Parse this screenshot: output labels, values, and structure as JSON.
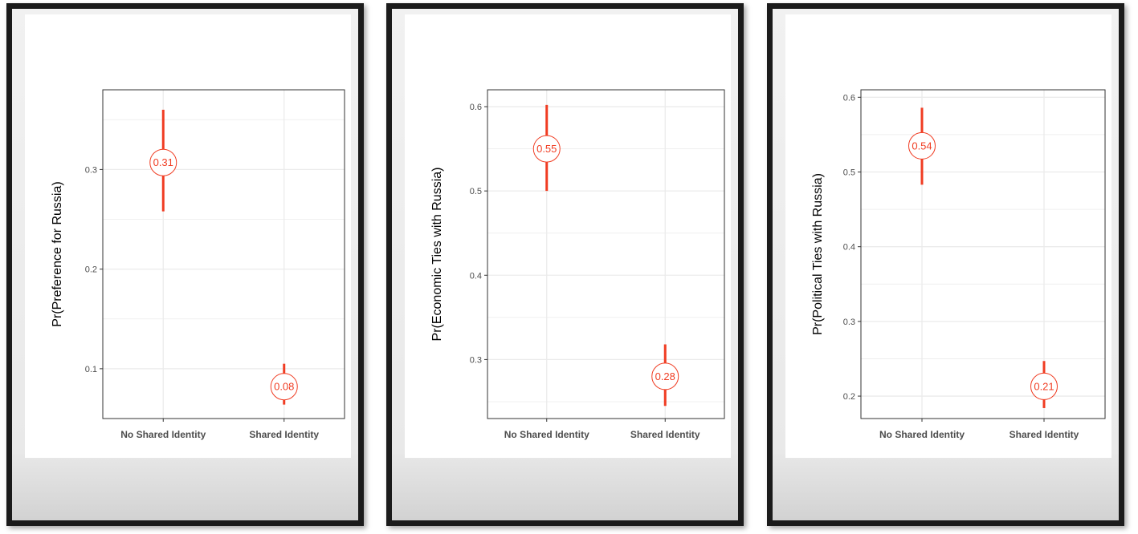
{
  "colors": {
    "accent": "#f03c22",
    "grid": "#ebebeb",
    "panel_border": "#333333",
    "frame": "#1b1b1b"
  },
  "chart_data": [
    {
      "type": "scatter",
      "title": "",
      "xlabel": "",
      "ylabel": "Pr(Preference for Russia)",
      "categories": [
        "No Shared Identity",
        "Shared Identity"
      ],
      "values": [
        0.307,
        0.082
      ],
      "point_labels": [
        "0.31",
        "0.08"
      ],
      "ci_low": [
        0.258,
        0.064
      ],
      "ci_high": [
        0.36,
        0.105
      ],
      "ylim": [
        0.05,
        0.38
      ],
      "yticks": [
        0.1,
        0.2,
        0.3
      ],
      "ytick_labels": [
        "0.1",
        "0.2",
        "0.3"
      ],
      "grid": true
    },
    {
      "type": "scatter",
      "title": "",
      "xlabel": "",
      "ylabel": "Pr(Economic Ties with Russia)",
      "categories": [
        "No Shared Identity",
        "Shared Identity"
      ],
      "values": [
        0.55,
        0.28
      ],
      "point_labels": [
        "0.55",
        "0.28"
      ],
      "ci_low": [
        0.5,
        0.245
      ],
      "ci_high": [
        0.602,
        0.318
      ],
      "ylim": [
        0.23,
        0.62
      ],
      "yticks": [
        0.3,
        0.4,
        0.5,
        0.6
      ],
      "ytick_labels": [
        "0.3",
        "0.4",
        "0.5",
        "0.6"
      ],
      "grid": true
    },
    {
      "type": "scatter",
      "title": "",
      "xlabel": "",
      "ylabel": "Pr(Political Ties with Russia)",
      "categories": [
        "No Shared Identity",
        "Shared Identity"
      ],
      "values": [
        0.535,
        0.213
      ],
      "point_labels": [
        "0.54",
        "0.21"
      ],
      "ci_low": [
        0.483,
        0.184
      ],
      "ci_high": [
        0.586,
        0.247
      ],
      "ylim": [
        0.17,
        0.61
      ],
      "yticks": [
        0.2,
        0.3,
        0.4,
        0.5,
        0.6
      ],
      "ytick_labels": [
        "0.2",
        "0.3",
        "0.4",
        "0.5",
        "0.6"
      ],
      "grid": true
    }
  ]
}
